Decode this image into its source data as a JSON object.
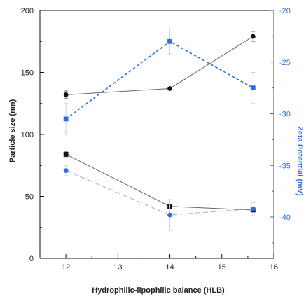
{
  "chart_data": {
    "type": "line",
    "xlabel": "Hydrophilic-lipophilic balance (HLB)",
    "ylabel": "Particle size (nm)",
    "y2label": "Zeta Potential (mV)",
    "xlim": [
      11.5,
      16
    ],
    "ylim": [
      0,
      200
    ],
    "y2lim": [
      -44,
      -20
    ],
    "x_ticks": [
      "12",
      "13",
      "14",
      "15",
      "16"
    ],
    "y_ticks": [
      "0",
      "50",
      "100",
      "150",
      "200"
    ],
    "y2_ticks": [
      "-20",
      "-25",
      "-30",
      "-35",
      "-40"
    ],
    "grid": false,
    "colors": {
      "black": "#111111",
      "blue": "#2f6fdc",
      "error_bar": "#c5d3ee"
    },
    "series": [
      {
        "axis": "left",
        "color": "#111111",
        "marker": "circle",
        "line": "solid",
        "thin": true,
        "x": [
          12,
          14,
          15.6
        ],
        "y": [
          132,
          137,
          179
        ],
        "err": [
          3,
          0,
          4
        ]
      },
      {
        "axis": "left",
        "color": "#111111",
        "marker": "square",
        "line": "solid",
        "thin": true,
        "x": [
          12,
          14,
          15.6
        ],
        "y": [
          84,
          42,
          39
        ],
        "err": [
          2,
          0,
          0
        ]
      },
      {
        "axis": "right",
        "color": "#2f6fdc",
        "marker": "square",
        "line": "dashed",
        "thin": false,
        "x": [
          12,
          14,
          15.6
        ],
        "y": [
          -30.5,
          -23,
          -27.5
        ],
        "err": [
          1.5,
          1.2,
          1.5
        ]
      },
      {
        "axis": "right",
        "color": "#2f6fdc",
        "marker": "circle",
        "line": "dashed",
        "thin": true,
        "x": [
          12,
          14,
          15.6
        ],
        "y": [
          -35.5,
          -39.8,
          -39.2
        ],
        "err": [
          0.5,
          1.5,
          0.6
        ]
      }
    ]
  }
}
